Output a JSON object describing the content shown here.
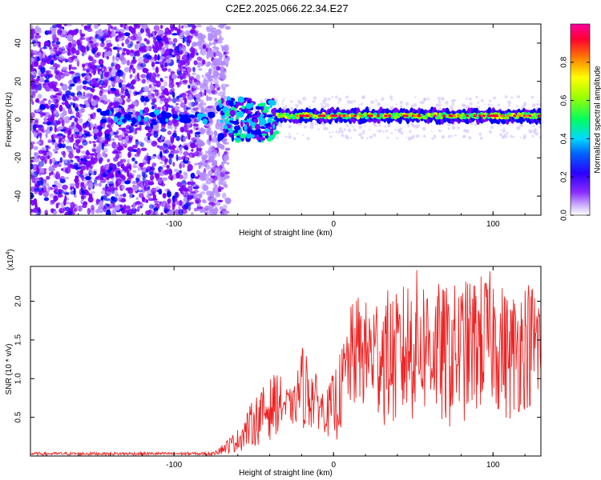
{
  "title": "C2E2.2025.066.22.34.E27",
  "chart_data": [
    {
      "type": "heatmap",
      "description_of_axes": "spectrogram-style density of spectral amplitude",
      "xlabel": "Height of straight line (km)",
      "ylabel": "Frequency (Hz)",
      "xlim": [
        -190,
        130
      ],
      "ylim": [
        -50,
        50
      ],
      "x_ticks": [
        -100,
        0,
        100
      ],
      "x_tick_labels": [
        "-100",
        "0",
        "100"
      ],
      "y_ticks": [
        -40,
        -20,
        0,
        20,
        40
      ],
      "y_tick_labels": [
        "-40",
        "-20",
        "0",
        "20",
        "40"
      ],
      "grid": false,
      "colorbar": {
        "label": "Normalized spectral amplitude",
        "range": [
          0.0,
          1.0
        ],
        "ticks": [
          0.0,
          0.2,
          0.4,
          0.6,
          0.8
        ],
        "tick_labels": [
          "0.0",
          "0.2",
          "0.4",
          "0.6",
          "0.8"
        ],
        "colormap": [
          "#ffffff",
          "#b28cff",
          "#7a00ff",
          "#0000ff",
          "#00c8ff",
          "#00ff80",
          "#80ff00",
          "#ffff00",
          "#ff8000",
          "#ff0040",
          "#ff00a0"
        ]
      },
      "regions": {
        "scattered_noise_x_range": [
          -190,
          -72
        ],
        "transition_x_range": [
          -72,
          -35
        ],
        "coherent_line_x_range": [
          -35,
          130
        ],
        "coherent_line_frequency_hz": 2
      }
    },
    {
      "type": "line",
      "xlabel": "Height of straight line (km)",
      "ylabel": "SNR (10 * v/v)",
      "y_multiplier_label": "(x10",
      "y_multiplier_exponent": "4",
      "xlim": [
        -190,
        130
      ],
      "ylim": [
        0,
        2.45
      ],
      "x_ticks": [
        -100,
        0,
        100
      ],
      "x_tick_labels": [
        "-100",
        "0",
        "100"
      ],
      "y_ticks": [
        0.5,
        1.0,
        1.5,
        2.0
      ],
      "y_tick_labels": [
        "0.5",
        "1.0",
        "1.5",
        "2.0"
      ],
      "grid": false,
      "color": "#ee2222",
      "series_envelope": {
        "x": [
          -190,
          -80,
          -70,
          -60,
          -50,
          -40,
          -35,
          -30,
          -25,
          -20,
          -15,
          -10,
          -5,
          0,
          5,
          10,
          15,
          20,
          30,
          40,
          50,
          60,
          70,
          80,
          90,
          100,
          110,
          120,
          130
        ],
        "y_low": [
          0.0,
          0.0,
          0.02,
          0.05,
          0.12,
          0.2,
          0.3,
          0.35,
          0.4,
          0.35,
          0.3,
          0.35,
          0.3,
          0.1,
          0.3,
          0.5,
          0.6,
          0.55,
          0.4,
          0.3,
          0.4,
          0.5,
          0.3,
          0.4,
          0.5,
          0.6,
          0.4,
          0.6,
          0.5
        ],
        "y_high": [
          0.05,
          0.05,
          0.15,
          0.35,
          0.75,
          1.0,
          1.1,
          0.9,
          0.85,
          1.45,
          1.3,
          1.0,
          0.8,
          1.1,
          1.4,
          1.9,
          2.1,
          2.0,
          2.2,
          2.1,
          2.45,
          2.3,
          2.2,
          2.25,
          2.35,
          2.4,
          2.1,
          2.3,
          2.25
        ]
      }
    }
  ]
}
